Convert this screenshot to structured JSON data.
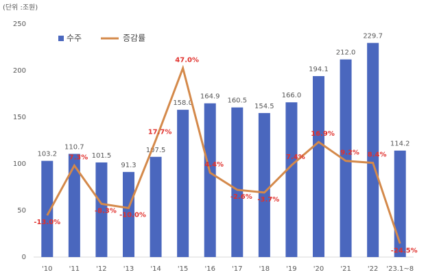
{
  "chart_data": {
    "type": "bar-line",
    "unit_label": "(단위 :조원)",
    "categories": [
      "'10",
      "'11",
      "'12",
      "'13",
      "'14",
      "'15",
      "'16",
      "'17",
      "'18",
      "'19",
      "'20",
      "'21",
      "'22",
      "'23.1~8"
    ],
    "series": [
      {
        "name": "수주",
        "type": "bar",
        "color": "#4a67be",
        "values": [
          103.2,
          110.7,
          101.5,
          91.3,
          107.5,
          158.0,
          164.9,
          160.5,
          154.5,
          166.0,
          194.1,
          212.0,
          229.7,
          114.2
        ],
        "value_labels": [
          "103.2",
          "110.7",
          "101.5",
          "91.3",
          "107.5",
          "158.0",
          "164.9",
          "160.5",
          "154.5",
          "166.0",
          "194.1",
          "212.0",
          "229.7",
          "114.2"
        ]
      },
      {
        "name": "증감률",
        "type": "line",
        "color": "#d4894a",
        "axis": "y2",
        "values": [
          -13.0,
          7.3,
          -8.3,
          -10.0,
          17.7,
          47.0,
          4.4,
          -2.6,
          -3.7,
          7.4,
          16.9,
          9.2,
          8.4,
          -24.5
        ],
        "value_labels": [
          "-13.0%",
          "7.3%",
          "-8.3%",
          "-10.0%",
          "17.7%",
          "47.0%",
          "4.4%",
          "-2.6%",
          "-3.7%",
          "7.4%",
          "16.9%",
          "9.2%",
          "8.4%",
          "-24.5%"
        ]
      }
    ],
    "ylim": [
      0,
      250
    ],
    "yticks": [
      0,
      50,
      100,
      150,
      200,
      250
    ],
    "y2lim": [
      -30,
      65
    ],
    "legend": "upper left",
    "grid": false
  }
}
